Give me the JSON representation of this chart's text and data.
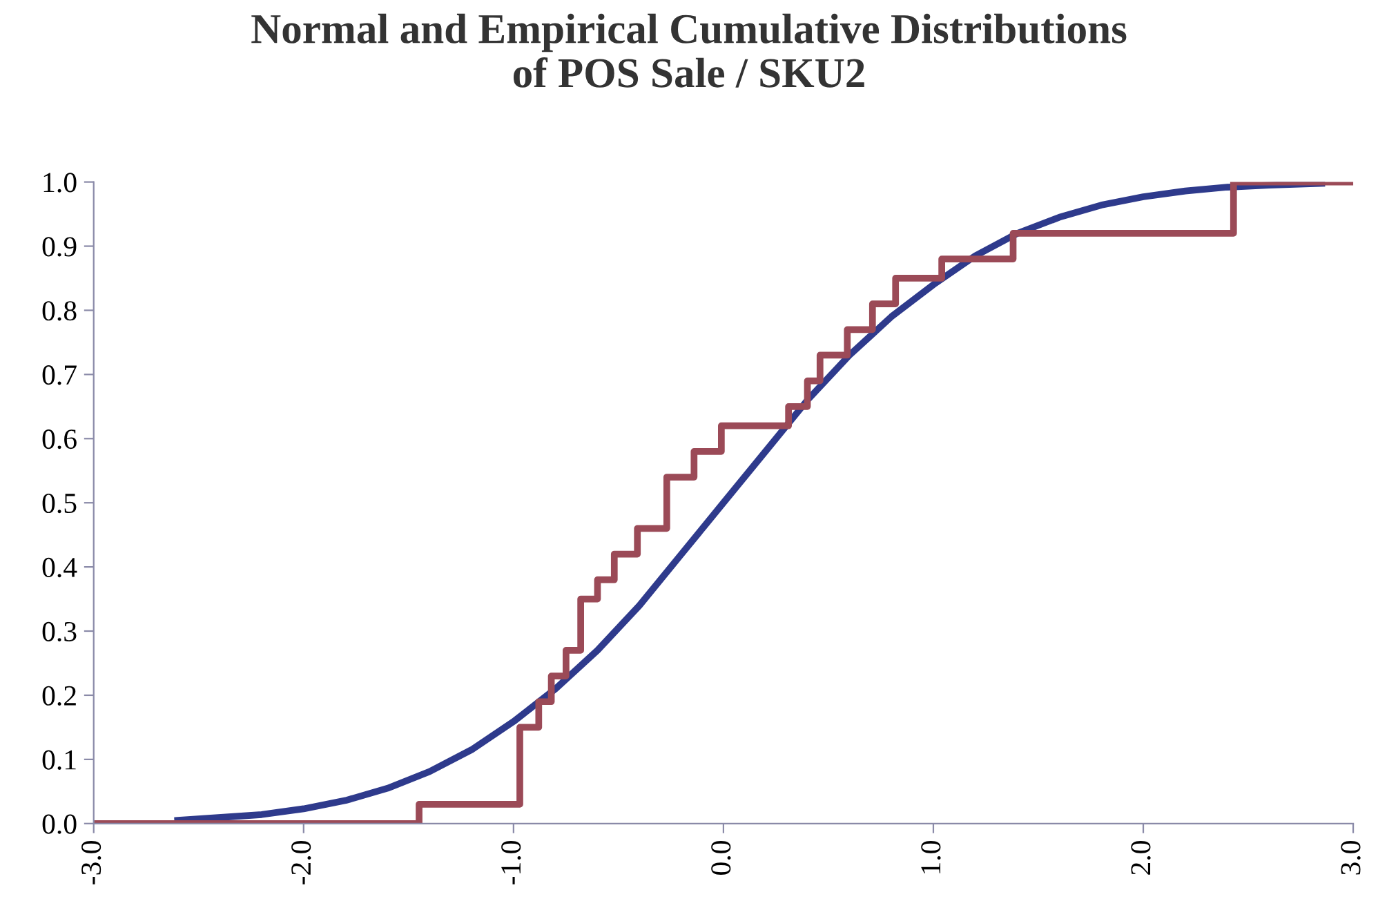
{
  "chart_data": {
    "type": "line",
    "title": "Normal and Empirical Cumulative Distributions\nof POS Sale / SKU2",
    "series": [
      {
        "color": "#2e3a8c",
        "x": [
          -2.6,
          -2.2,
          -2.0,
          -1.8,
          -1.6,
          -1.4,
          -1.2,
          -1.0,
          -0.8,
          -0.6,
          -0.4,
          -0.2,
          0.0,
          0.2,
          0.4,
          0.6,
          0.8,
          1.0,
          1.2,
          1.4,
          1.6,
          1.8,
          2.0,
          2.2,
          2.4,
          2.6,
          2.85
        ],
        "values": [
          0.005,
          0.014,
          0.023,
          0.036,
          0.055,
          0.081,
          0.115,
          0.159,
          0.21,
          0.27,
          0.34,
          0.42,
          0.5,
          0.58,
          0.66,
          0.73,
          0.79,
          0.84,
          0.885,
          0.92,
          0.945,
          0.964,
          0.977,
          0.986,
          0.992,
          0.995,
          0.998
        ]
      },
      {
        "type": "step",
        "color": "#9b4a57",
        "x": [
          -3.0,
          -1.45,
          -0.97,
          -0.88,
          -0.82,
          -0.75,
          -0.68,
          -0.6,
          -0.52,
          -0.41,
          -0.27,
          -0.14,
          -0.01,
          0.31,
          0.4,
          0.46,
          0.59,
          0.71,
          0.82,
          1.04,
          1.38,
          2.43,
          3.0
        ],
        "values": [
          0.0,
          0.03,
          0.15,
          0.19,
          0.23,
          0.27,
          0.35,
          0.38,
          0.42,
          0.46,
          0.54,
          0.58,
          0.62,
          0.65,
          0.69,
          0.73,
          0.77,
          0.81,
          0.85,
          0.88,
          0.92,
          1.0,
          1.0
        ]
      }
    ],
    "xlim": [
      -3.0,
      3.0
    ],
    "xticks": [
      {
        "value": -3,
        "label": "-3.0"
      },
      {
        "value": -2,
        "label": "-2.0"
      },
      {
        "value": -1,
        "label": "-1.0"
      },
      {
        "value": 0,
        "label": "0.0"
      },
      {
        "value": 1,
        "label": "1.0"
      },
      {
        "value": 2,
        "label": "2.0"
      },
      {
        "value": 3,
        "label": "3.0"
      }
    ],
    "ylim": [
      0.0,
      1.0
    ],
    "yticks": [
      {
        "value": 0,
        "label": "0.0"
      },
      0.1,
      0.2,
      0.3,
      0.4,
      0.5,
      0.6,
      0.7,
      0.8,
      0.9,
      {
        "value": 1,
        "label": "1.0"
      }
    ],
    "grid": false,
    "legend": false,
    "line_style": "solid",
    "marker": "none"
  }
}
